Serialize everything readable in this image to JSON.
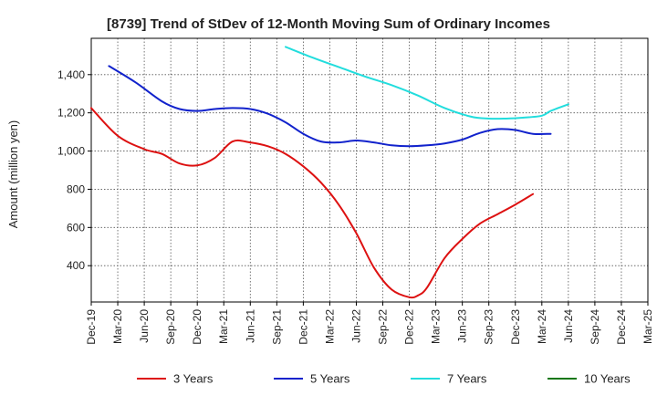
{
  "chart_data": {
    "type": "line",
    "title": "[8739]  Trend of StDev of 12-Month Moving Sum of Ordinary Incomes",
    "xlabel": "",
    "ylabel": "Amount (million yen)",
    "ylim": [
      210,
      1590
    ],
    "yticks": [
      400,
      600,
      800,
      1000,
      1200,
      1400
    ],
    "ytick_labels": [
      "400",
      "600",
      "800",
      "1,000",
      "1,200",
      "1,400"
    ],
    "x_tick_labels": [
      "Dec-19",
      "Mar-20",
      "Jun-20",
      "Sep-20",
      "Dec-20",
      "Mar-21",
      "Jun-21",
      "Sep-21",
      "Dec-21",
      "Mar-22",
      "Jun-22",
      "Sep-22",
      "Dec-22",
      "Mar-23",
      "Jun-23",
      "Sep-23",
      "Dec-23",
      "Mar-24",
      "Jun-24",
      "Sep-24",
      "Dec-24",
      "Mar-25"
    ],
    "grid": true,
    "legend_position": "bottom",
    "series": [
      {
        "name": "3 Years",
        "color": "#dd1111",
        "points": [
          [
            0,
            1225
          ],
          [
            3,
            1080
          ],
          [
            6,
            1010
          ],
          [
            8,
            985
          ],
          [
            10,
            935
          ],
          [
            12,
            925
          ],
          [
            14,
            965
          ],
          [
            16,
            1050
          ],
          [
            18,
            1045
          ],
          [
            20,
            1025
          ],
          [
            22,
            985
          ],
          [
            24,
            920
          ],
          [
            26,
            835
          ],
          [
            28,
            720
          ],
          [
            30,
            570
          ],
          [
            32,
            390
          ],
          [
            34,
            275
          ],
          [
            36,
            235
          ],
          [
            37,
            245
          ],
          [
            38,
            285
          ],
          [
            40,
            440
          ],
          [
            42,
            540
          ],
          [
            44,
            620
          ],
          [
            46,
            670
          ],
          [
            48,
            720
          ],
          [
            50,
            775
          ]
        ]
      },
      {
        "name": "5 Years",
        "color": "#1122cc",
        "points": [
          [
            2,
            1445
          ],
          [
            5,
            1360
          ],
          [
            8,
            1260
          ],
          [
            10,
            1220
          ],
          [
            12,
            1210
          ],
          [
            14,
            1220
          ],
          [
            16,
            1225
          ],
          [
            18,
            1220
          ],
          [
            20,
            1195
          ],
          [
            22,
            1150
          ],
          [
            24,
            1090
          ],
          [
            26,
            1050
          ],
          [
            28,
            1045
          ],
          [
            30,
            1055
          ],
          [
            32,
            1045
          ],
          [
            34,
            1030
          ],
          [
            36,
            1025
          ],
          [
            38,
            1030
          ],
          [
            40,
            1040
          ],
          [
            42,
            1060
          ],
          [
            44,
            1095
          ],
          [
            46,
            1115
          ],
          [
            48,
            1110
          ],
          [
            50,
            1090
          ],
          [
            52,
            1090
          ]
        ]
      },
      {
        "name": "7 Years",
        "color": "#22dddd",
        "points": [
          [
            22,
            1545
          ],
          [
            25,
            1490
          ],
          [
            28,
            1440
          ],
          [
            31,
            1390
          ],
          [
            34,
            1345
          ],
          [
            37,
            1290
          ],
          [
            40,
            1225
          ],
          [
            43,
            1180
          ],
          [
            45,
            1170
          ],
          [
            47,
            1170
          ],
          [
            49,
            1175
          ],
          [
            51,
            1185
          ],
          [
            52,
            1210
          ],
          [
            54,
            1245
          ]
        ]
      },
      {
        "name": "10 Years",
        "color": "#117711",
        "points": []
      }
    ]
  }
}
